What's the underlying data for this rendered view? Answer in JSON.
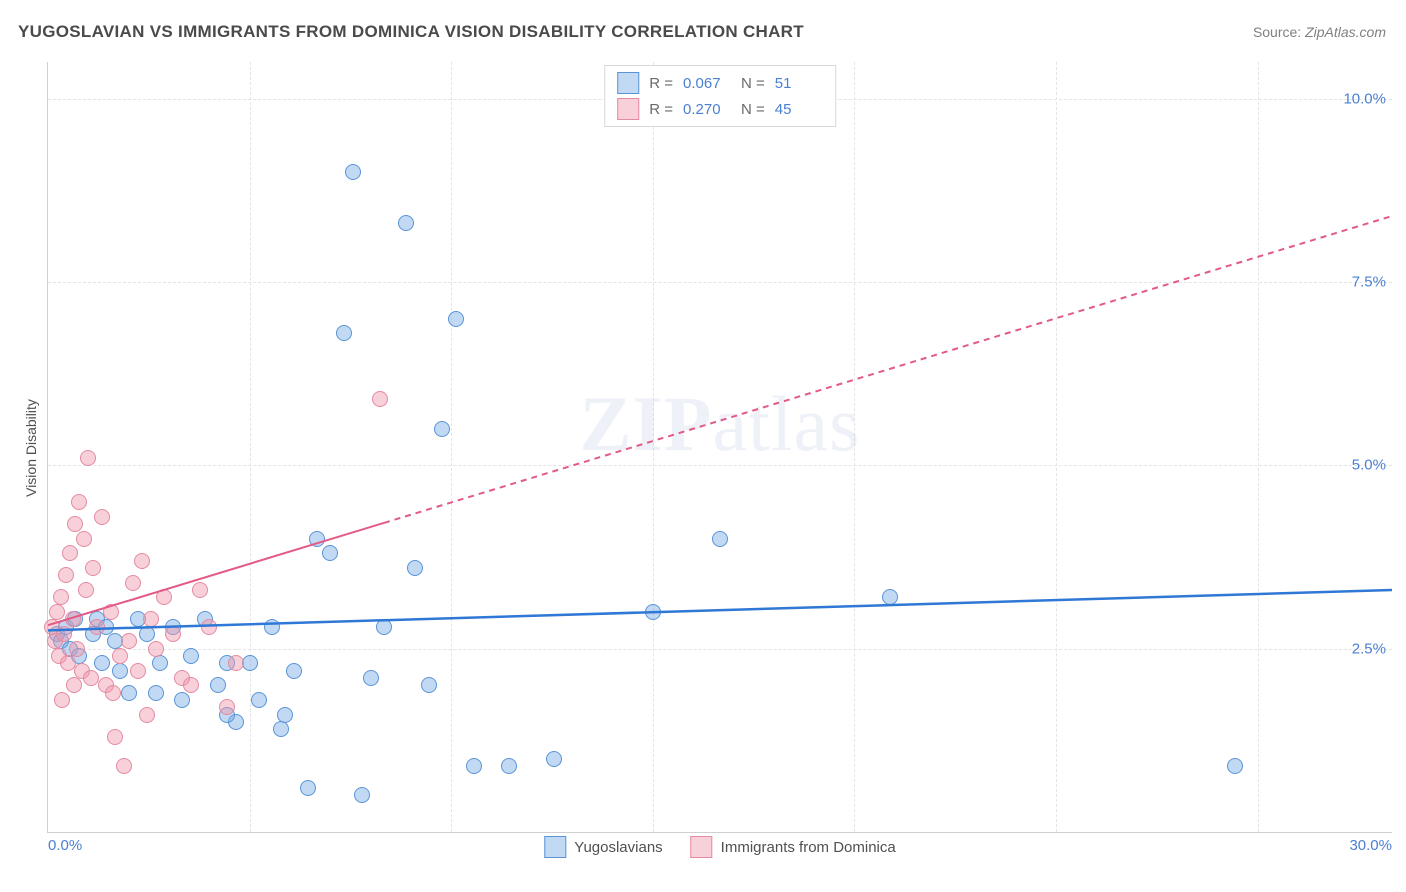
{
  "title": "YUGOSLAVIAN VS IMMIGRANTS FROM DOMINICA VISION DISABILITY CORRELATION CHART",
  "source_label": "Source:",
  "source_value": "ZipAtlas.com",
  "ylabel": "Vision Disability",
  "watermark": "ZIPatlas",
  "chart": {
    "type": "scatter",
    "xlim": [
      0,
      30
    ],
    "ylim": [
      0,
      10.5
    ],
    "x_ticks": [
      0.0,
      30.0
    ],
    "x_tick_labels": [
      "0.0%",
      "30.0%"
    ],
    "y_ticks": [
      2.5,
      5.0,
      7.5,
      10.0
    ],
    "y_tick_labels": [
      "2.5%",
      "5.0%",
      "7.5%",
      "10.0%"
    ],
    "x_gridlines": [
      4.5,
      9.0,
      13.5,
      18.0,
      22.5,
      27.0
    ],
    "grid_color": "#e4e4e4",
    "axis_color": "#d0d0d0",
    "background_color": "#ffffff",
    "series": [
      {
        "name": "Yugoslavians",
        "color_fill": "rgba(120,170,230,0.45)",
        "color_stroke": "#5a94d6",
        "trend_color": "#2f78d6",
        "trend_width": 2.5,
        "trend_dash": "none",
        "R": "0.067",
        "N": "51",
        "trend": {
          "x1": 0.0,
          "y1": 2.75,
          "x2": 30.0,
          "y2": 3.3
        },
        "points": [
          [
            0.2,
            2.7
          ],
          [
            0.3,
            2.6
          ],
          [
            0.4,
            2.8
          ],
          [
            0.5,
            2.5
          ],
          [
            0.6,
            2.9
          ],
          [
            0.7,
            2.4
          ],
          [
            1.0,
            2.7
          ],
          [
            1.1,
            2.9
          ],
          [
            1.2,
            2.3
          ],
          [
            1.3,
            2.8
          ],
          [
            1.5,
            2.6
          ],
          [
            1.6,
            2.2
          ],
          [
            1.8,
            1.9
          ],
          [
            2.0,
            2.9
          ],
          [
            2.2,
            2.7
          ],
          [
            2.4,
            1.9
          ],
          [
            2.5,
            2.3
          ],
          [
            2.8,
            2.8
          ],
          [
            3.0,
            1.8
          ],
          [
            3.2,
            2.4
          ],
          [
            3.5,
            2.9
          ],
          [
            3.8,
            2.0
          ],
          [
            4.0,
            2.3
          ],
          [
            4.2,
            1.5
          ],
          [
            4.5,
            2.3
          ],
          [
            4.7,
            1.8
          ],
          [
            5.0,
            2.8
          ],
          [
            5.2,
            1.4
          ],
          [
            5.5,
            2.2
          ],
          [
            5.8,
            0.6
          ],
          [
            6.0,
            4.0
          ],
          [
            6.3,
            3.8
          ],
          [
            6.6,
            6.8
          ],
          [
            6.8,
            9.0
          ],
          [
            7.0,
            0.5
          ],
          [
            7.2,
            2.1
          ],
          [
            7.5,
            2.8
          ],
          [
            8.0,
            8.3
          ],
          [
            8.2,
            3.6
          ],
          [
            8.5,
            2.0
          ],
          [
            8.8,
            5.5
          ],
          [
            9.1,
            7.0
          ],
          [
            9.5,
            0.9
          ],
          [
            10.3,
            0.9
          ],
          [
            11.3,
            1.0
          ],
          [
            13.5,
            3.0
          ],
          [
            15.0,
            4.0
          ],
          [
            18.8,
            3.2
          ],
          [
            26.5,
            0.9
          ],
          [
            4.0,
            1.6
          ],
          [
            5.3,
            1.6
          ]
        ]
      },
      {
        "name": "Immigrants from Dominica",
        "color_fill": "rgba(240,150,170,0.45)",
        "color_stroke": "#e58aa1",
        "trend_color": "#e35a86",
        "trend_width": 2,
        "trend_dash": "6,5",
        "R": "0.270",
        "N": "45",
        "trend": {
          "x1": 0.0,
          "y1": 2.82,
          "x2": 30.0,
          "y2": 8.4
        },
        "trend_solid_until_x": 7.5,
        "points": [
          [
            0.1,
            2.8
          ],
          [
            0.15,
            2.6
          ],
          [
            0.2,
            3.0
          ],
          [
            0.25,
            2.4
          ],
          [
            0.3,
            3.2
          ],
          [
            0.35,
            2.7
          ],
          [
            0.4,
            3.5
          ],
          [
            0.45,
            2.3
          ],
          [
            0.5,
            3.8
          ],
          [
            0.55,
            2.9
          ],
          [
            0.6,
            4.2
          ],
          [
            0.65,
            2.5
          ],
          [
            0.7,
            4.5
          ],
          [
            0.75,
            2.2
          ],
          [
            0.8,
            4.0
          ],
          [
            0.85,
            3.3
          ],
          [
            0.9,
            5.1
          ],
          [
            0.95,
            2.1
          ],
          [
            1.0,
            3.6
          ],
          [
            1.1,
            2.8
          ],
          [
            1.2,
            4.3
          ],
          [
            1.3,
            2.0
          ],
          [
            1.4,
            3.0
          ],
          [
            1.5,
            1.3
          ],
          [
            1.6,
            2.4
          ],
          [
            1.7,
            0.9
          ],
          [
            1.8,
            2.6
          ],
          [
            1.9,
            3.4
          ],
          [
            2.0,
            2.2
          ],
          [
            2.1,
            3.7
          ],
          [
            2.2,
            1.6
          ],
          [
            2.3,
            2.9
          ],
          [
            2.4,
            2.5
          ],
          [
            2.6,
            3.2
          ],
          [
            2.8,
            2.7
          ],
          [
            3.0,
            2.1
          ],
          [
            3.2,
            2.0
          ],
          [
            3.4,
            3.3
          ],
          [
            3.6,
            2.8
          ],
          [
            4.0,
            1.7
          ],
          [
            4.2,
            2.3
          ],
          [
            7.4,
            5.9
          ],
          [
            1.45,
            1.9
          ],
          [
            0.58,
            2.0
          ],
          [
            0.32,
            1.8
          ]
        ]
      }
    ]
  },
  "legend_bottom": [
    {
      "label": "Yugoslavians",
      "swatch_fill": "rgba(120,170,230,0.45)",
      "swatch_stroke": "#5a94d6"
    },
    {
      "label": "Immigrants from Dominica",
      "swatch_fill": "rgba(240,150,170,0.45)",
      "swatch_stroke": "#e58aa1"
    }
  ]
}
